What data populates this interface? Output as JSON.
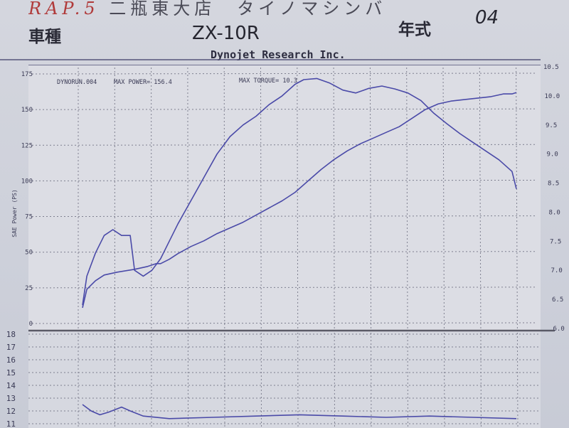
{
  "header": {
    "top_text": "二瓶東大店　タイノマシンバ",
    "top_prefix": "RAP.5",
    "model_label": "車種",
    "model": "ZX-10R",
    "year_label": "年式",
    "year": "04",
    "company": "Dynojet Research Inc."
  },
  "chart_data": {
    "type": "line",
    "run_label": "DYNORUN.004",
    "max_power_label": "MAX POWER= 156.4",
    "max_torque_label": "MAX TORQUE= 10.3",
    "ylabel": "SAE Power (PS)",
    "ylim": [
      0,
      175
    ],
    "yticks": [
      "175",
      "150",
      "125",
      "100",
      "75",
      "50",
      "25",
      "0"
    ],
    "y2lim": [
      6.0,
      10.5
    ],
    "y2ticks": [
      "10.5",
      "10.0",
      "9.5",
      "9.0",
      "8.5",
      "8.0",
      "7.5",
      "7.0",
      "6.5",
      "6.0"
    ],
    "y2_unit": "torque",
    "series": [
      {
        "role": "power",
        "axis": "left",
        "color": "#4a4aa8",
        "points": [
          [
            0.0,
            11
          ],
          [
            0.01,
            24
          ],
          [
            0.03,
            30
          ],
          [
            0.05,
            34
          ],
          [
            0.08,
            36
          ],
          [
            0.12,
            38
          ],
          [
            0.15,
            40
          ],
          [
            0.17,
            42
          ],
          [
            0.18,
            42
          ],
          [
            0.2,
            45
          ],
          [
            0.22,
            49
          ],
          [
            0.25,
            54
          ],
          [
            0.28,
            58
          ],
          [
            0.31,
            63
          ],
          [
            0.34,
            67
          ],
          [
            0.37,
            71
          ],
          [
            0.4,
            76
          ],
          [
            0.43,
            81
          ],
          [
            0.46,
            86
          ],
          [
            0.49,
            92
          ],
          [
            0.52,
            100
          ],
          [
            0.55,
            108
          ],
          [
            0.58,
            115
          ],
          [
            0.61,
            121
          ],
          [
            0.64,
            126
          ],
          [
            0.67,
            130
          ],
          [
            0.7,
            134
          ],
          [
            0.73,
            138
          ],
          [
            0.76,
            144
          ],
          [
            0.79,
            150
          ],
          [
            0.82,
            154
          ],
          [
            0.85,
            156
          ],
          [
            0.88,
            157
          ],
          [
            0.91,
            158
          ],
          [
            0.94,
            159
          ],
          [
            0.97,
            161
          ],
          [
            0.99,
            161
          ],
          [
            1.0,
            162
          ]
        ]
      },
      {
        "role": "torque",
        "axis": "right",
        "color": "#4a4aa8",
        "points": [
          [
            0.0,
            6.4
          ],
          [
            0.01,
            6.9
          ],
          [
            0.03,
            7.3
          ],
          [
            0.05,
            7.6
          ],
          [
            0.07,
            7.7
          ],
          [
            0.09,
            7.6
          ],
          [
            0.11,
            7.6
          ],
          [
            0.12,
            7.0
          ],
          [
            0.14,
            6.9
          ],
          [
            0.16,
            7.0
          ],
          [
            0.18,
            7.2
          ],
          [
            0.2,
            7.5
          ],
          [
            0.22,
            7.8
          ],
          [
            0.25,
            8.2
          ],
          [
            0.28,
            8.6
          ],
          [
            0.31,
            9.0
          ],
          [
            0.34,
            9.3
          ],
          [
            0.37,
            9.5
          ],
          [
            0.4,
            9.65
          ],
          [
            0.43,
            9.85
          ],
          [
            0.46,
            10.0
          ],
          [
            0.49,
            10.2
          ],
          [
            0.51,
            10.28
          ],
          [
            0.54,
            10.3
          ],
          [
            0.57,
            10.22
          ],
          [
            0.6,
            10.1
          ],
          [
            0.63,
            10.05
          ],
          [
            0.66,
            10.13
          ],
          [
            0.69,
            10.17
          ],
          [
            0.72,
            10.12
          ],
          [
            0.75,
            10.05
          ],
          [
            0.78,
            9.92
          ],
          [
            0.81,
            9.7
          ],
          [
            0.84,
            9.52
          ],
          [
            0.87,
            9.35
          ],
          [
            0.9,
            9.2
          ],
          [
            0.93,
            9.05
          ],
          [
            0.96,
            8.9
          ],
          [
            0.99,
            8.7
          ],
          [
            1.0,
            8.4
          ]
        ]
      }
    ]
  },
  "lower_chart": {
    "yticks": [
      "18",
      "17",
      "16",
      "15",
      "14",
      "13",
      "12",
      "11"
    ],
    "ylim": [
      11,
      18
    ],
    "series": [
      {
        "role": "afr",
        "color": "#4a4aa8",
        "points": [
          [
            0.0,
            12.5
          ],
          [
            0.02,
            12.0
          ],
          [
            0.04,
            11.7
          ],
          [
            0.06,
            11.9
          ],
          [
            0.09,
            12.3
          ],
          [
            0.11,
            12.0
          ],
          [
            0.14,
            11.6
          ],
          [
            0.2,
            11.4
          ],
          [
            0.3,
            11.5
          ],
          [
            0.4,
            11.6
          ],
          [
            0.5,
            11.7
          ],
          [
            0.6,
            11.6
          ],
          [
            0.7,
            11.5
          ],
          [
            0.8,
            11.6
          ],
          [
            0.9,
            11.5
          ],
          [
            1.0,
            11.4
          ]
        ]
      }
    ]
  }
}
